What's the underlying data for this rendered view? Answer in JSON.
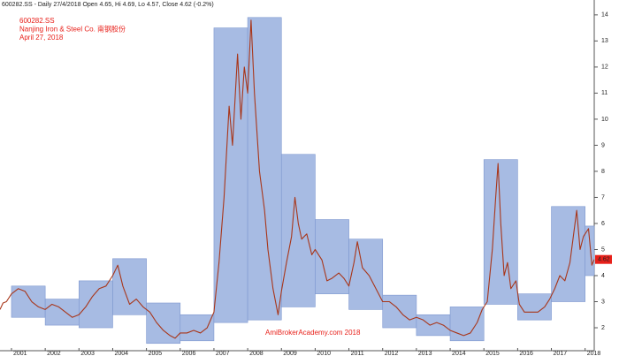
{
  "chart_data": {
    "type": "line",
    "title": "600282.SS - Daily 27/4/2018 Open 4.65, Hi 4.69, Lo 4.57, Close 4.62 (-0.2%)",
    "subtitle": [
      "600282.SS",
      "Nanjing Iron & Steel Co. 南钢股份",
      "April 27, 2018"
    ],
    "annotation": "AmiBrokerAcademy.com  2018",
    "color": "#a8361a",
    "x": [
      2000.66,
      2000.75,
      2000.85,
      2001.0,
      2001.2,
      2001.4,
      2001.6,
      2001.8,
      2002.0,
      2002.2,
      2002.4,
      2002.6,
      2002.8,
      2003.0,
      2003.2,
      2003.4,
      2003.6,
      2003.8,
      2004.0,
      2004.15,
      2004.3,
      2004.5,
      2004.7,
      2004.9,
      2005.1,
      2005.3,
      2005.5,
      2005.7,
      2005.85,
      2006.0,
      2006.2,
      2006.4,
      2006.6,
      2006.8,
      2007.0,
      2007.15,
      2007.3,
      2007.45,
      2007.55,
      2007.7,
      2007.8,
      2007.9,
      2008.0,
      2008.1,
      2008.2,
      2008.35,
      2008.5,
      2008.6,
      2008.75,
      2008.9,
      2009.0,
      2009.15,
      2009.3,
      2009.4,
      2009.5,
      2009.6,
      2009.75,
      2009.9,
      2010.0,
      2010.2,
      2010.35,
      2010.5,
      2010.7,
      2010.85,
      2011.0,
      2011.15,
      2011.25,
      2011.4,
      2011.6,
      2011.8,
      2012.0,
      2012.2,
      2012.4,
      2012.6,
      2012.8,
      2013.0,
      2013.2,
      2013.4,
      2013.6,
      2013.8,
      2014.0,
      2014.2,
      2014.4,
      2014.6,
      2014.8,
      2014.95,
      2015.1,
      2015.25,
      2015.35,
      2015.42,
      2015.5,
      2015.6,
      2015.7,
      2015.8,
      2015.95,
      2016.05,
      2016.2,
      2016.4,
      2016.6,
      2016.8,
      2016.95,
      2017.1,
      2017.25,
      2017.4,
      2017.55,
      2017.65,
      2017.75,
      2017.85,
      2017.95,
      2018.1,
      2018.2,
      2018.27
    ],
    "values": [
      2.7,
      2.95,
      3.0,
      3.3,
      3.5,
      3.4,
      3.0,
      2.8,
      2.7,
      2.9,
      2.8,
      2.6,
      2.4,
      2.5,
      2.8,
      3.2,
      3.5,
      3.6,
      4.0,
      4.4,
      3.6,
      2.9,
      3.1,
      2.8,
      2.6,
      2.2,
      1.9,
      1.7,
      1.6,
      1.8,
      1.8,
      1.9,
      1.8,
      2.0,
      2.6,
      4.5,
      7.0,
      10.5,
      9.0,
      12.5,
      10.0,
      12.0,
      11.0,
      13.8,
      11.0,
      8.0,
      6.5,
      5.0,
      3.5,
      2.5,
      3.4,
      4.5,
      5.5,
      7.0,
      6.0,
      5.4,
      5.6,
      4.8,
      5.0,
      4.6,
      3.8,
      3.9,
      4.1,
      3.9,
      3.6,
      4.5,
      5.3,
      4.3,
      4.0,
      3.5,
      3.0,
      3.0,
      2.8,
      2.5,
      2.3,
      2.4,
      2.3,
      2.1,
      2.2,
      2.1,
      1.9,
      1.8,
      1.7,
      1.8,
      2.2,
      2.7,
      3.0,
      5.0,
      7.0,
      8.3,
      6.0,
      4.0,
      4.5,
      3.5,
      3.8,
      2.9,
      2.6,
      2.6,
      2.6,
      2.8,
      3.1,
      3.5,
      4.0,
      3.8,
      4.5,
      5.5,
      6.5,
      5.0,
      5.5,
      5.8,
      4.4,
      4.62
    ],
    "ranges": {
      "color": "#a7bbe3",
      "years": [
        2001,
        2002,
        2003,
        2004,
        2005,
        2006,
        2007,
        2008,
        2009,
        2010,
        2011,
        2012,
        2013,
        2014,
        2015,
        2016,
        2017,
        2018
      ],
      "highs": [
        3.6,
        3.1,
        3.8,
        4.65,
        2.95,
        2.5,
        13.5,
        13.9,
        8.65,
        6.15,
        5.4,
        3.25,
        2.5,
        2.8,
        8.45,
        3.3,
        6.65,
        5.9
      ],
      "lows": [
        2.4,
        2.1,
        2.0,
        2.5,
        1.4,
        1.5,
        2.2,
        2.3,
        2.8,
        3.3,
        2.7,
        2.0,
        1.7,
        1.5,
        2.9,
        2.3,
        3.0,
        4.0
      ]
    },
    "xlim": [
      2000.66,
      2018.27
    ],
    "xticks": [
      2001,
      2002,
      2003,
      2004,
      2005,
      2006,
      2007,
      2008,
      2009,
      2010,
      2011,
      2012,
      2013,
      2014,
      2015,
      2016,
      2017,
      2018
    ],
    "ylim": [
      1.12,
      14.3
    ],
    "yticks": [
      2,
      3,
      4,
      5,
      6,
      7,
      8,
      9,
      10,
      11,
      12,
      13,
      14
    ]
  }
}
